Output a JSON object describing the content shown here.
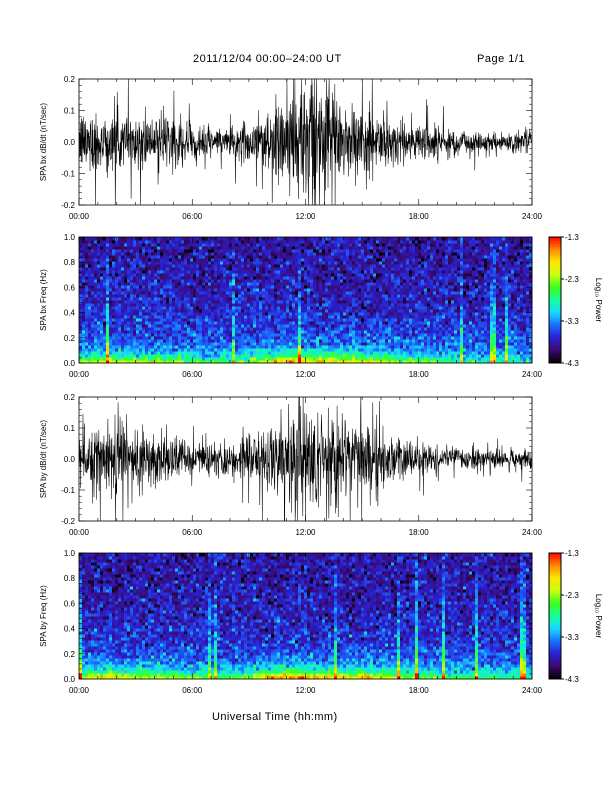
{
  "header": {
    "title": "2011/12/04  00:00–24:00 UT",
    "page": "Page 1/1"
  },
  "xlabel": "Universal Time (hh:mm)",
  "colorbar": {
    "label": "Log₁₀ Power",
    "ticks": [
      "-1.3",
      "-2.3",
      "-3.3",
      "-4.3"
    ],
    "range": [
      -4.3,
      -1.3
    ],
    "colors": [
      "#000000",
      "#3a0a6e",
      "#2a1fd0",
      "#1a6fff",
      "#19d8ff",
      "#14ff9c",
      "#3aff1e",
      "#c9ff10",
      "#ffe600",
      "#ff8a00",
      "#ff0000"
    ]
  },
  "chart_data": [
    {
      "type": "line",
      "title": "",
      "xlabel": "",
      "ylabel": "SPA bx dB/dt (nT/sec)",
      "xlim": [
        "00:00",
        "24:00"
      ],
      "ylim": [
        -0.2,
        0.2
      ],
      "x_ticks": [
        "00:00",
        "06:00",
        "12:00",
        "18:00",
        "24:00"
      ],
      "y_ticks": [
        "0.2",
        "0.1",
        "0.0",
        "-0.1",
        "-0.2"
      ],
      "grid": false,
      "x_hours": [
        0,
        1,
        2,
        3,
        4,
        5,
        6,
        7,
        8,
        9,
        10,
        11,
        12,
        13,
        14,
        15,
        16,
        17,
        18,
        19,
        20,
        21,
        22,
        23,
        24
      ],
      "amplitude_envelope": [
        0.08,
        0.1,
        0.09,
        0.08,
        0.08,
        0.07,
        0.05,
        0.045,
        0.05,
        0.06,
        0.11,
        0.16,
        0.19,
        0.15,
        0.12,
        0.12,
        0.08,
        0.07,
        0.06,
        0.05,
        0.04,
        0.035,
        0.03,
        0.03,
        0.04
      ]
    },
    {
      "type": "heatmap",
      "title": "",
      "xlabel": "",
      "ylabel": "SPA bx Freq (Hz)",
      "xlim": [
        "00:00",
        "24:00"
      ],
      "ylim": [
        0.0,
        1.0
      ],
      "x_ticks": [
        "00:00",
        "06:00",
        "12:00",
        "18:00",
        "24:00"
      ],
      "y_ticks": [
        "1.0",
        "0.8",
        "0.6",
        "0.4",
        "0.2",
        "0.0"
      ],
      "colorbar_range": [
        -4.3,
        -1.3
      ],
      "x_hours": [
        0,
        1,
        2,
        3,
        4,
        5,
        6,
        7,
        8,
        9,
        10,
        11,
        12,
        13,
        14,
        15,
        16,
        17,
        18,
        19,
        20,
        21,
        22,
        23,
        24
      ],
      "low_freq_power_log10": [
        -3.0,
        -2.6,
        -2.6,
        -2.7,
        -2.7,
        -2.9,
        -3.1,
        -3.3,
        -3.2,
        -3.0,
        -2.5,
        -2.0,
        -2.0,
        -2.3,
        -2.6,
        -2.3,
        -2.6,
        -2.9,
        -3.1,
        -3.3,
        -3.4,
        -3.5,
        -3.5,
        -3.5,
        -3.4
      ]
    },
    {
      "type": "line",
      "title": "",
      "xlabel": "",
      "ylabel": "SPA by dB/dt (nT/sec)",
      "xlim": [
        "00:00",
        "24:00"
      ],
      "ylim": [
        -0.2,
        0.2
      ],
      "x_ticks": [
        "00:00",
        "06:00",
        "12:00",
        "18:00",
        "24:00"
      ],
      "y_ticks": [
        "0.2",
        "0.1",
        "0.0",
        "-0.1",
        "-0.2"
      ],
      "grid": false,
      "x_hours": [
        0,
        1,
        2,
        3,
        4,
        5,
        6,
        7,
        8,
        9,
        10,
        11,
        12,
        13,
        14,
        15,
        16,
        17,
        18,
        19,
        20,
        21,
        22,
        23,
        24
      ],
      "amplitude_envelope": [
        0.06,
        0.09,
        0.1,
        0.09,
        0.08,
        0.07,
        0.05,
        0.05,
        0.05,
        0.07,
        0.12,
        0.16,
        0.18,
        0.15,
        0.12,
        0.1,
        0.09,
        0.06,
        0.05,
        0.04,
        0.035,
        0.03,
        0.03,
        0.03,
        0.05
      ]
    },
    {
      "type": "heatmap",
      "title": "",
      "xlabel": "",
      "ylabel": "SPA by Freq (Hz)",
      "xlim": [
        "00:00",
        "24:00"
      ],
      "ylim": [
        0.0,
        1.0
      ],
      "x_ticks": [
        "00:00",
        "06:00",
        "12:00",
        "18:00",
        "24:00"
      ],
      "y_ticks": [
        "1.0",
        "0.8",
        "0.6",
        "0.4",
        "0.2",
        "0.0"
      ],
      "colorbar_range": [
        -4.3,
        -1.3
      ],
      "x_hours": [
        0,
        1,
        2,
        3,
        4,
        5,
        6,
        7,
        8,
        9,
        10,
        11,
        12,
        13,
        14,
        15,
        16,
        17,
        18,
        19,
        20,
        21,
        22,
        23,
        24
      ],
      "low_freq_power_log10": [
        -2.8,
        -2.4,
        -2.4,
        -2.5,
        -2.6,
        -2.8,
        -3.0,
        -3.1,
        -3.1,
        -2.9,
        -2.3,
        -1.9,
        -1.9,
        -2.2,
        -2.4,
        -2.2,
        -2.4,
        -2.7,
        -2.9,
        -3.1,
        -3.2,
        -3.3,
        -3.3,
        -3.3,
        -3.2
      ]
    }
  ]
}
